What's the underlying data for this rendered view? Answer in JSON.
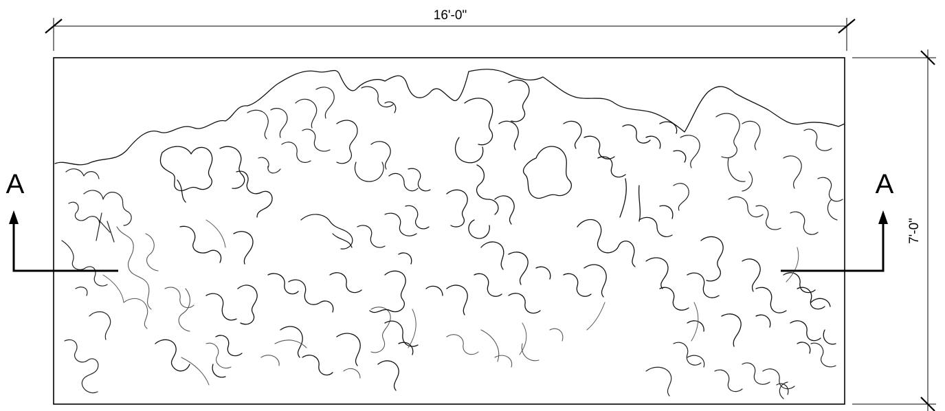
{
  "dimensions": {
    "width_label": "16'-0\"",
    "height_label": "7'-0\""
  },
  "section": {
    "left_label": "A",
    "right_label": "A"
  },
  "colors": {
    "line": "#000000",
    "pattern_dark": "#111111",
    "pattern_light": "#555555",
    "background": "#ffffff"
  }
}
